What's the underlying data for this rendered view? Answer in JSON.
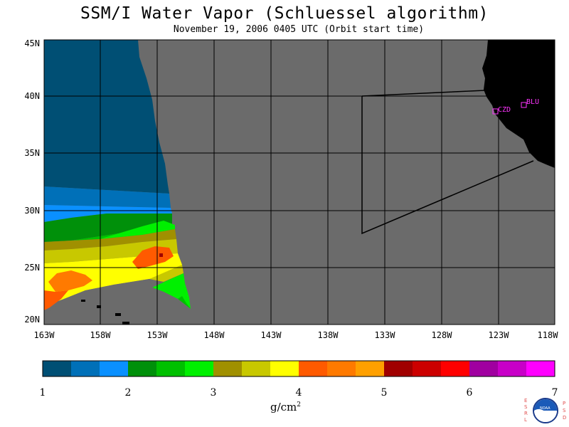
{
  "title": "SSM/I Water Vapor (Schluessel algorithm)",
  "subtitle": "November 19, 2006  0405 UTC  (Orbit start time)",
  "map": {
    "lat_labels": [
      "45N",
      "40N",
      "35N",
      "30N",
      "25N",
      "20N"
    ],
    "lon_labels": [
      "163W",
      "158W",
      "153W",
      "148W",
      "143W",
      "138W",
      "133W",
      "128W",
      "123W",
      "118W"
    ],
    "stations": [
      {
        "name": "CZD"
      },
      {
        "name": "BLU"
      }
    ],
    "no_data_color": "#6b6b6b",
    "land_color": "#000000",
    "station_color": "#ff33ff"
  },
  "colorbar": {
    "tick_labels": [
      "1",
      "2",
      "3",
      "4",
      "5",
      "6",
      "7"
    ],
    "units": "g/cm",
    "units_sup": "2",
    "colors": [
      "#004f74",
      "#0070b8",
      "#0a90ff",
      "#00900a",
      "#00c000",
      "#00f000",
      "#a09000",
      "#c8c800",
      "#ffff00",
      "#ff5a00",
      "#ff7a00",
      "#ffa000",
      "#a00000",
      "#cc0000",
      "#ff0000",
      "#a000a0",
      "#c800c8",
      "#ff00ff"
    ]
  },
  "logo": {
    "left_letters": "ESRL",
    "right_letters": "PSD",
    "emblem": "NOAA"
  }
}
